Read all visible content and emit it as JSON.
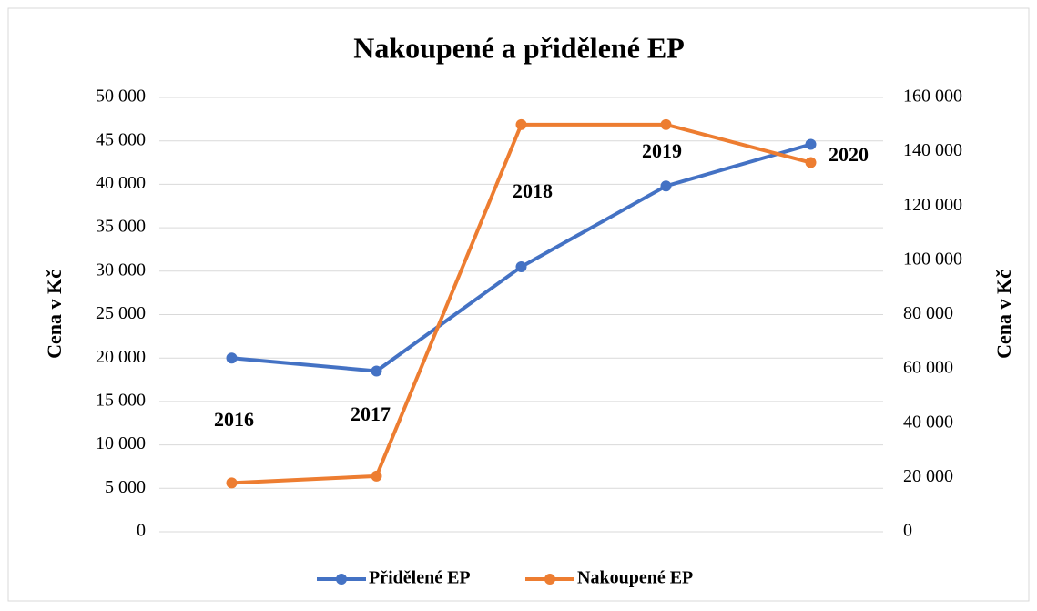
{
  "chart_data": {
    "type": "line",
    "title": "Nakoupené a přidělené EP",
    "categories": [
      "2016",
      "2017",
      "2018",
      "2019",
      "2020"
    ],
    "series": [
      {
        "name": "Přidělené EP",
        "color": "#4472c4",
        "values": [
          20000,
          18500,
          30500,
          39800,
          44600
        ]
      },
      {
        "name": "Nakoupené EP",
        "color": "#ed7d31",
        "axis": "y2",
        "values": [
          18000,
          20500,
          150000,
          150000,
          136000
        ]
      }
    ],
    "ylabel": "Cena v Kč",
    "y2label": "Cena v Kč",
    "ylim": [
      0,
      50000
    ],
    "yticks": [
      0,
      {
        "value": 5000,
        "label": "5 000"
      },
      {
        "value": 10000,
        "label": "10 000"
      },
      {
        "value": 15000,
        "label": "15 000"
      },
      {
        "value": 20000,
        "label": "20 000"
      },
      {
        "value": 25000,
        "label": "25 000"
      },
      {
        "value": 30000,
        "label": "30 000"
      },
      {
        "value": 35000,
        "label": "35 000"
      },
      {
        "value": 40000,
        "label": "40 000"
      },
      {
        "value": 45000,
        "label": "45 000"
      },
      {
        "value": 50000,
        "label": "50 000"
      }
    ],
    "y2lim": [
      0,
      160000
    ],
    "y2ticks": [
      0,
      {
        "value": 20000,
        "label": "20 000"
      },
      {
        "value": 40000,
        "label": "40 000"
      },
      {
        "value": 60000,
        "label": "60 000"
      },
      {
        "value": 80000,
        "label": "80 000"
      },
      {
        "value": 100000,
        "label": "100 000"
      },
      {
        "value": 120000,
        "label": "120 000"
      },
      {
        "value": 140000,
        "label": "140 000"
      },
      {
        "value": 160000,
        "label": "160 000"
      }
    ],
    "grid": true,
    "legend": "bottom"
  }
}
